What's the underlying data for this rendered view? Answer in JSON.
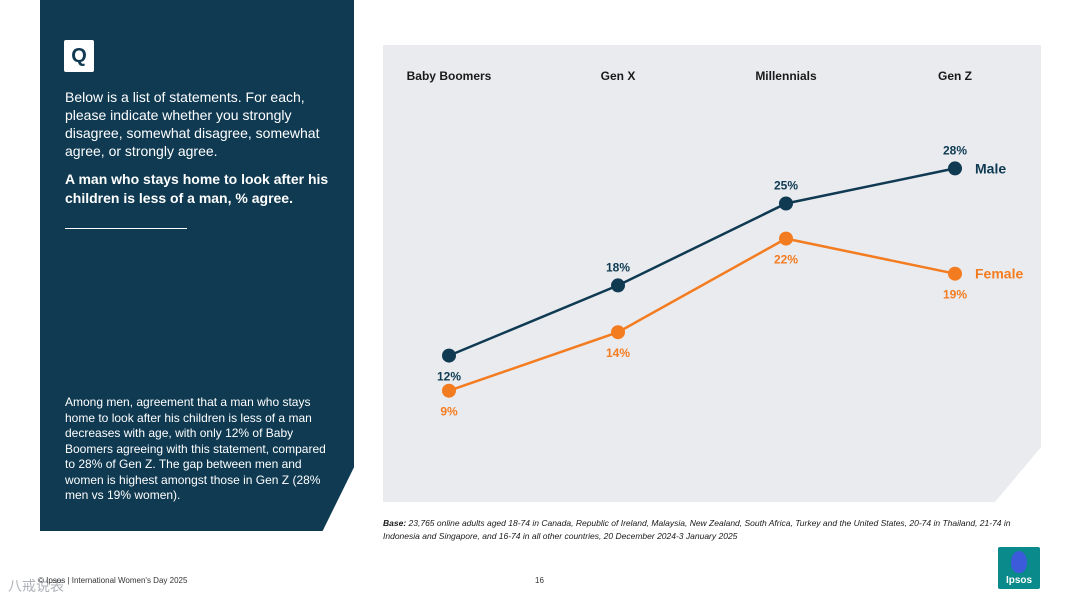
{
  "question": {
    "badge": "Q",
    "text": "Below is a list of statements. For each, please indicate whether you strongly disagree, somewhat disagree, somewhat agree, or strongly agree.",
    "statement": "A man who stays home to look after his children is less of a man, % agree."
  },
  "summary": "Among men, agreement that a man who stays home to look after his children is less of a man decreases with age, with only 12% of Baby Boomers agreeing with this statement, compared to 28% of Gen Z. The gap between men and women is highest amongst those in Gen Z (28% men vs 19% women).",
  "colors": {
    "male": "#0f3a52",
    "female": "#f47c20",
    "panel": "#0f3a52",
    "chart_bg": "#e9ebef"
  },
  "chart_data": {
    "type": "line",
    "categories": [
      "Baby Boomers",
      "Gen X",
      "Millennials",
      "Gen Z"
    ],
    "series": [
      {
        "name": "Male",
        "values": [
          12,
          18,
          25,
          28
        ],
        "labels": [
          "12%",
          "18%",
          "25%",
          "28%"
        ]
      },
      {
        "name": "Female",
        "values": [
          9,
          14,
          22,
          19
        ],
        "labels": [
          "9%",
          "14%",
          "22%",
          "19%"
        ]
      }
    ],
    "ylim": [
      0,
      30
    ],
    "grid": false,
    "legend": "end-of-line"
  },
  "base": {
    "label": "Base:",
    "text": "23,765 online adults aged 18-74 in Canada, Republic of Ireland, Malaysia, New Zealand, South Africa, Turkey and the United States, 20-74 in Thailand, 21-74 in Indonesia and Singapore, and 16-74 in all other countries, 20 December 2024-3 January 2025"
  },
  "footer": {
    "source": "© Ipsos | International Women's Day 2025",
    "page": "16",
    "logo": "Ipsos",
    "watermark": "八戒说表"
  }
}
